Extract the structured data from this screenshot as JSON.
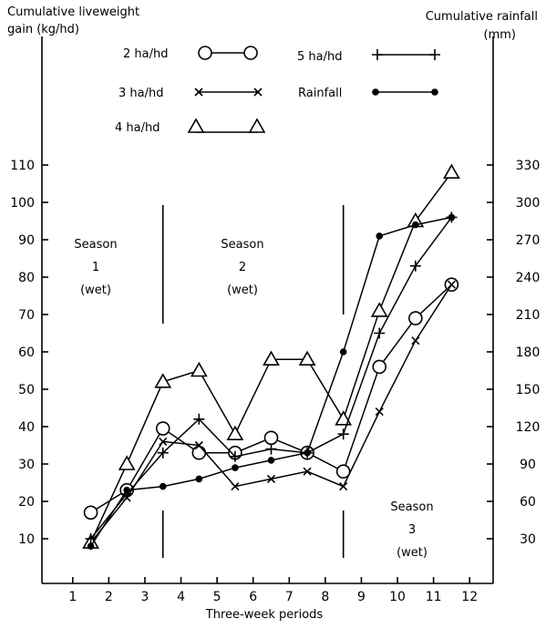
{
  "chart_data": {
    "type": "line",
    "ylabel_left": [
      "Cumulative liveweight",
      "gain (kg/hd)"
    ],
    "ylabel_right": [
      "Cumulative rainfall",
      "(mm)"
    ],
    "xlabel": "Three-week periods",
    "x_ticks": [
      "1",
      "2",
      "3",
      "4",
      "5",
      "6",
      "7",
      "8",
      "9",
      "10",
      "11",
      "12"
    ],
    "y_left_ticks": [
      10,
      20,
      30,
      40,
      50,
      60,
      70,
      80,
      90,
      100,
      110
    ],
    "y_right_ticks": [
      30,
      60,
      90,
      120,
      150,
      180,
      210,
      240,
      270,
      300,
      330
    ],
    "ylim_left": [
      0,
      115
    ],
    "ylim_right": [
      0,
      345
    ],
    "xlim": [
      0.5,
      12.5
    ],
    "series": [
      {
        "name": "2 ha/hd",
        "marker": "circle",
        "x": [
          1.5,
          2.5,
          3.5,
          4.5,
          5.5,
          6.5,
          7.5,
          8.5,
          9.5,
          10.5,
          11.5
        ],
        "y": [
          17,
          23,
          39.5,
          33,
          33,
          37,
          33,
          28,
          56,
          69,
          78
        ]
      },
      {
        "name": "3 ha/hd",
        "marker": "x",
        "x": [
          1.5,
          2.5,
          3.5,
          4.5,
          5.5,
          6.5,
          7.5,
          8.5,
          9.5,
          10.5,
          11.5
        ],
        "y": [
          9,
          21,
          36,
          35,
          24,
          26,
          28,
          24,
          44,
          63,
          78
        ]
      },
      {
        "name": "4 ha/hd",
        "marker": "triangle",
        "x": [
          1.5,
          2.5,
          3.5,
          4.5,
          5.5,
          6.5,
          7.5,
          8.5,
          9.5,
          10.5,
          11.5
        ],
        "y": [
          9,
          30,
          52,
          55,
          38,
          58,
          58,
          42,
          71,
          95,
          108
        ]
      },
      {
        "name": "5 ha/hd",
        "marker": "plus",
        "x": [
          1.5,
          2.5,
          3.5,
          4.5,
          5.5,
          6.5,
          7.5,
          8.5,
          9.5,
          10.5,
          11.5
        ],
        "y": [
          10,
          22,
          33,
          42,
          32,
          34,
          33,
          38,
          65,
          83,
          96
        ]
      },
      {
        "name": "Rainfall",
        "marker": "dot",
        "axis": "right",
        "x": [
          1.5,
          2.5,
          3.5,
          4.5,
          5.5,
          6.5,
          7.5,
          8.5,
          9.5,
          10.5,
          11.5
        ],
        "y": [
          24,
          69,
          72,
          78,
          87,
          93,
          99,
          180,
          273,
          282,
          288
        ]
      }
    ],
    "annotations": [
      {
        "lines": [
          "Season",
          "1",
          "(wet)"
        ]
      },
      {
        "lines": [
          "Season",
          "2",
          "(wet)"
        ]
      },
      {
        "lines": [
          "Season",
          "3",
          "(wet)"
        ]
      }
    ],
    "season_boundaries_x": [
      3.5,
      8.5
    ],
    "legend_position": "top"
  }
}
